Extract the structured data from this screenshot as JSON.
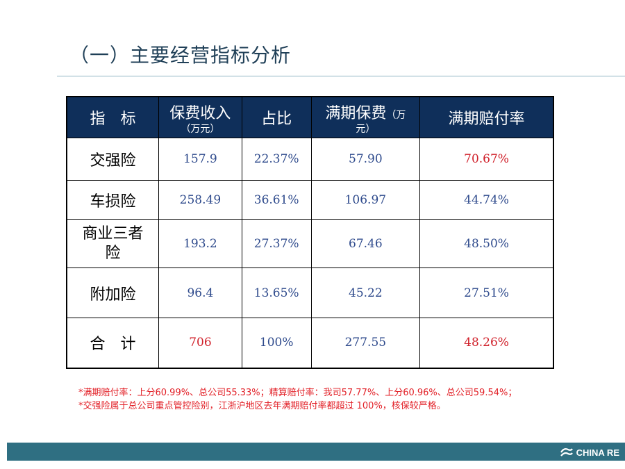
{
  "title": "（一）主要经营指标分析",
  "table": {
    "headers": [
      {
        "main": "指　标",
        "sub": ""
      },
      {
        "main": "保费收入",
        "sub": "（万元）"
      },
      {
        "main": "占比",
        "sub": ""
      },
      {
        "main": "满期保费",
        "small": "（万",
        "sub": "元）"
      },
      {
        "main": "满期赔付率",
        "sub": ""
      }
    ],
    "rows": [
      {
        "label": "交强险",
        "premium": "157.9",
        "share": "22.37%",
        "earned": "57.90",
        "loss_ratio": "70.67%"
      },
      {
        "label": "车损险",
        "premium": "258.49",
        "share": "36.61%",
        "earned": "106.97",
        "loss_ratio": "44.74%"
      },
      {
        "label": "商业三者险",
        "premium": "193.2",
        "share": "27.37%",
        "earned": "67.46",
        "loss_ratio": "48.50%"
      },
      {
        "label": "附加险",
        "premium": "96.4",
        "share": "13.65%",
        "earned": "45.22",
        "loss_ratio": "27.51%"
      },
      {
        "label": "合　计",
        "premium": "706",
        "share": "100%",
        "earned": "277.55",
        "loss_ratio": "48.26%"
      }
    ]
  },
  "notes": [
    "*满期赔付率：上分60.99%、总公司55.33%；精算赔付率：我司57.77%、上分60.96%、总公司59.54%；",
    "*交强险属于总公司重点管控险别，江浙沪地区去年满期赔付率都超过 100%，核保较严格。"
  ],
  "logo": {
    "text": "CHINA RE",
    "icon": "china-re-logo-icon"
  },
  "colors": {
    "header_bg": "#0f2f5a",
    "value_blue": "#2e4a8c",
    "value_red": "#d0202a",
    "note_red": "#e21f26",
    "footer_bar": "#2f6f82"
  }
}
